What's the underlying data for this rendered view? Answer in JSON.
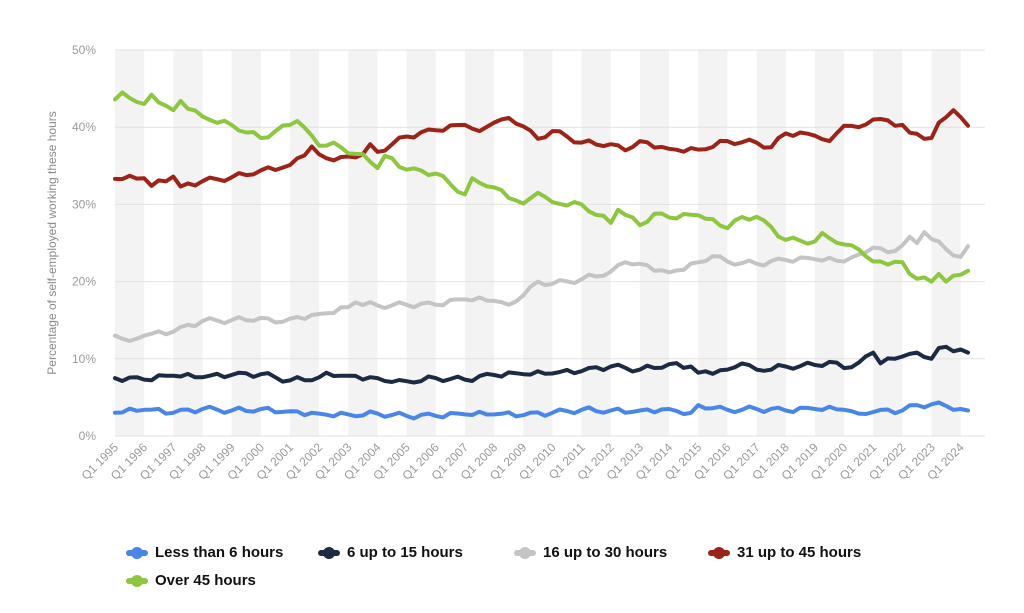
{
  "chart_data": {
    "type": "line",
    "ylabel": "Percentage of self-employed working these hours",
    "xlabel": "",
    "ylim": [
      0,
      50
    ],
    "y_ticks": [
      "0%",
      "10%",
      "20%",
      "30%",
      "40%",
      "50%"
    ],
    "x_ticks": [
      "Q1 1995",
      "Q1 1996",
      "Q1 1997",
      "Q1 1998",
      "Q1 1999",
      "Q1 2000",
      "Q1 2001",
      "Q1 2002",
      "Q1 2003",
      "Q1 2004",
      "Q1 2005",
      "Q1 2006",
      "Q1 2007",
      "Q1 2008",
      "Q1 2009",
      "Q1 2010",
      "Q1 2011",
      "Q1 2012",
      "Q1 2013",
      "Q1 2014",
      "Q1 2015",
      "Q1 2016",
      "Q1 2017",
      "Q1 2018",
      "Q1 2019",
      "Q1 2020",
      "Q1 2021",
      "Q1 2022",
      "Q1 2023",
      "Q1 2024"
    ],
    "x_start": "1995 Q1",
    "x_end": "2024 Q2",
    "grid": true,
    "legend_position": "bottom",
    "series": [
      {
        "name": "Less than 6 hours",
        "color": "#4a86e8",
        "keypoints": [
          [
            1995.0,
            3.0
          ],
          [
            1996.0,
            3.4
          ],
          [
            1997.0,
            3.0
          ],
          [
            1998.0,
            3.5
          ],
          [
            1999.0,
            3.3
          ],
          [
            2000.0,
            3.5
          ],
          [
            2001.0,
            3.2
          ],
          [
            2002.0,
            2.9
          ],
          [
            2003.0,
            2.8
          ],
          [
            2004.0,
            2.9
          ],
          [
            2005.0,
            2.6
          ],
          [
            2006.0,
            2.6
          ],
          [
            2007.0,
            2.8
          ],
          [
            2008.0,
            2.8
          ],
          [
            2009.0,
            2.7
          ],
          [
            2010.0,
            3.0
          ],
          [
            2011.0,
            3.4
          ],
          [
            2012.0,
            3.3
          ],
          [
            2013.0,
            3.3
          ],
          [
            2014.0,
            3.5
          ],
          [
            2014.75,
            3.0
          ],
          [
            2015.0,
            4.0
          ],
          [
            2015.5,
            3.6
          ],
          [
            2016.0,
            3.4
          ],
          [
            2017.0,
            3.5
          ],
          [
            2018.0,
            3.3
          ],
          [
            2019.0,
            3.5
          ],
          [
            2020.0,
            3.4
          ],
          [
            2020.5,
            2.9
          ],
          [
            2021.0,
            3.1
          ],
          [
            2022.0,
            3.3
          ],
          [
            2022.5,
            4.0
          ],
          [
            2023.0,
            4.1
          ],
          [
            2023.5,
            3.9
          ],
          [
            2024.0,
            3.5
          ],
          [
            2024.25,
            3.3
          ]
        ]
      },
      {
        "name": "6 up to 15 hours",
        "color": "#1c2a44",
        "keypoints": [
          [
            1995.0,
            7.5
          ],
          [
            1996.0,
            7.3
          ],
          [
            1997.0,
            7.8
          ],
          [
            1998.0,
            7.6
          ],
          [
            1999.0,
            7.9
          ],
          [
            2000.0,
            8.0
          ],
          [
            2001.0,
            7.2
          ],
          [
            2002.0,
            7.6
          ],
          [
            2002.25,
            8.2
          ],
          [
            2003.0,
            7.8
          ],
          [
            2004.0,
            7.5
          ],
          [
            2004.5,
            7.0
          ],
          [
            2005.0,
            7.1
          ],
          [
            2006.0,
            7.5
          ],
          [
            2007.0,
            7.3
          ],
          [
            2008.0,
            7.9
          ],
          [
            2009.0,
            8.0
          ],
          [
            2010.0,
            8.1
          ],
          [
            2011.0,
            8.4
          ],
          [
            2012.0,
            9.0
          ],
          [
            2013.0,
            8.6
          ],
          [
            2014.0,
            9.3
          ],
          [
            2014.75,
            9.0
          ],
          [
            2015.0,
            8.2
          ],
          [
            2016.0,
            8.6
          ],
          [
            2016.5,
            9.4
          ],
          [
            2017.0,
            8.6
          ],
          [
            2018.0,
            9.0
          ],
          [
            2019.0,
            9.2
          ],
          [
            2019.5,
            9.6
          ],
          [
            2020.0,
            8.8
          ],
          [
            2020.5,
            9.5
          ],
          [
            2021.0,
            10.8
          ],
          [
            2021.25,
            9.4
          ],
          [
            2022.0,
            10.3
          ],
          [
            2022.5,
            10.8
          ],
          [
            2023.0,
            10.0
          ],
          [
            2023.25,
            11.4
          ],
          [
            2024.0,
            11.2
          ],
          [
            2024.25,
            10.8
          ]
        ]
      },
      {
        "name": "16 up to 30 hours",
        "color": "#c4c4c4",
        "keypoints": [
          [
            1995.0,
            13.0
          ],
          [
            1995.5,
            12.3
          ],
          [
            1996.0,
            13.0
          ],
          [
            1997.0,
            13.5
          ],
          [
            1998.0,
            14.9
          ],
          [
            1999.0,
            15.0
          ],
          [
            2000.0,
            15.3
          ],
          [
            2000.5,
            14.7
          ],
          [
            2001.0,
            15.2
          ],
          [
            2002.0,
            15.8
          ],
          [
            2003.0,
            16.7
          ],
          [
            2003.25,
            17.3
          ],
          [
            2004.0,
            16.9
          ],
          [
            2005.0,
            17.0
          ],
          [
            2006.0,
            17.0
          ],
          [
            2007.0,
            17.7
          ],
          [
            2008.0,
            17.5
          ],
          [
            2008.5,
            17.0
          ],
          [
            2009.0,
            18.2
          ],
          [
            2009.5,
            20.0
          ],
          [
            2010.0,
            19.7
          ],
          [
            2011.0,
            20.3
          ],
          [
            2012.0,
            21.3
          ],
          [
            2012.5,
            22.5
          ],
          [
            2013.0,
            22.3
          ],
          [
            2014.0,
            21.2
          ],
          [
            2015.0,
            22.5
          ],
          [
            2015.5,
            23.3
          ],
          [
            2016.0,
            22.6
          ],
          [
            2017.0,
            22.3
          ],
          [
            2018.0,
            22.8
          ],
          [
            2019.0,
            22.9
          ],
          [
            2020.0,
            22.6
          ],
          [
            2020.5,
            23.5
          ],
          [
            2021.0,
            24.4
          ],
          [
            2021.5,
            23.8
          ],
          [
            2022.0,
            24.7
          ],
          [
            2022.25,
            25.8
          ],
          [
            2022.5,
            25.0
          ],
          [
            2022.75,
            26.4
          ],
          [
            2023.0,
            25.5
          ],
          [
            2023.5,
            24.2
          ],
          [
            2024.0,
            23.2
          ],
          [
            2024.25,
            24.6
          ]
        ]
      },
      {
        "name": "31 up to 45 hours",
        "color": "#9c2318",
        "keypoints": [
          [
            1995.0,
            33.3
          ],
          [
            1996.0,
            33.4
          ],
          [
            1996.25,
            32.4
          ],
          [
            1997.0,
            33.6
          ],
          [
            1997.25,
            32.3
          ],
          [
            1998.0,
            33.0
          ],
          [
            1999.0,
            33.5
          ],
          [
            2000.0,
            34.4
          ],
          [
            2001.0,
            35.1
          ],
          [
            2001.75,
            37.5
          ],
          [
            2002.0,
            36.5
          ],
          [
            2002.5,
            35.7
          ],
          [
            2003.0,
            36.2
          ],
          [
            2003.5,
            36.5
          ],
          [
            2003.75,
            37.8
          ],
          [
            2004.0,
            36.8
          ],
          [
            2005.0,
            38.8
          ],
          [
            2006.0,
            39.6
          ],
          [
            2007.0,
            40.3
          ],
          [
            2007.5,
            39.5
          ],
          [
            2008.0,
            40.6
          ],
          [
            2008.5,
            41.2
          ],
          [
            2009.0,
            40.1
          ],
          [
            2009.5,
            38.5
          ],
          [
            2010.0,
            39.5
          ],
          [
            2011.0,
            38.0
          ],
          [
            2012.0,
            37.8
          ],
          [
            2012.5,
            37.0
          ],
          [
            2013.0,
            38.2
          ],
          [
            2014.0,
            37.2
          ],
          [
            2015.0,
            37.1
          ],
          [
            2016.0,
            38.2
          ],
          [
            2017.0,
            38.0
          ],
          [
            2017.5,
            37.4
          ],
          [
            2018.0,
            39.2
          ],
          [
            2019.0,
            38.9
          ],
          [
            2019.5,
            38.2
          ],
          [
            2020.0,
            40.2
          ],
          [
            2020.5,
            40.0
          ],
          [
            2021.0,
            41.0
          ],
          [
            2022.0,
            40.3
          ],
          [
            2022.25,
            39.3
          ],
          [
            2023.0,
            38.6
          ],
          [
            2023.25,
            40.6
          ],
          [
            2023.75,
            42.2
          ],
          [
            2024.0,
            41.3
          ],
          [
            2024.25,
            40.2
          ]
        ]
      },
      {
        "name": "Over 45 hours",
        "color": "#8dc63f",
        "keypoints": [
          [
            1995.0,
            43.6
          ],
          [
            1995.25,
            44.5
          ],
          [
            1996.0,
            43.0
          ],
          [
            1996.25,
            44.2
          ],
          [
            1997.0,
            42.2
          ],
          [
            1997.25,
            43.4
          ],
          [
            1998.0,
            41.4
          ],
          [
            1999.0,
            40.3
          ],
          [
            2000.0,
            38.6
          ],
          [
            2001.0,
            40.3
          ],
          [
            2001.25,
            40.8
          ],
          [
            2002.0,
            37.6
          ],
          [
            2002.5,
            38.0
          ],
          [
            2003.0,
            36.6
          ],
          [
            2003.5,
            36.5
          ],
          [
            2004.0,
            34.7
          ],
          [
            2004.25,
            36.3
          ],
          [
            2005.0,
            34.5
          ],
          [
            2006.0,
            34.0
          ],
          [
            2007.0,
            31.3
          ],
          [
            2007.25,
            33.4
          ],
          [
            2008.0,
            32.2
          ],
          [
            2009.0,
            30.1
          ],
          [
            2009.5,
            31.5
          ],
          [
            2010.0,
            30.3
          ],
          [
            2011.0,
            30.0
          ],
          [
            2012.0,
            27.6
          ],
          [
            2012.25,
            29.3
          ],
          [
            2013.0,
            27.3
          ],
          [
            2013.5,
            28.8
          ],
          [
            2014.0,
            28.3
          ],
          [
            2015.0,
            28.6
          ],
          [
            2016.0,
            26.9
          ],
          [
            2016.25,
            27.9
          ],
          [
            2017.0,
            28.4
          ],
          [
            2018.0,
            25.4
          ],
          [
            2019.0,
            25.2
          ],
          [
            2019.25,
            26.3
          ],
          [
            2020.0,
            24.8
          ],
          [
            2020.5,
            24.2
          ],
          [
            2021.0,
            22.6
          ],
          [
            2022.0,
            22.5
          ],
          [
            2022.25,
            21.0
          ],
          [
            2023.0,
            20.0
          ],
          [
            2023.25,
            21.0
          ],
          [
            2023.5,
            20.0
          ],
          [
            2024.0,
            20.9
          ],
          [
            2024.25,
            21.4
          ]
        ]
      }
    ]
  }
}
